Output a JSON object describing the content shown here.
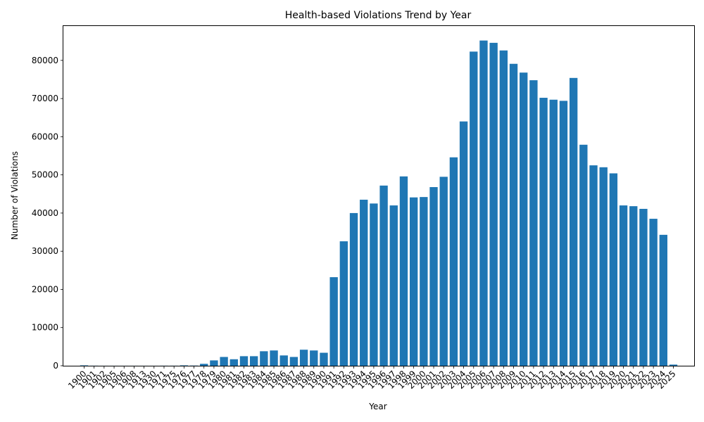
{
  "chart_data": {
    "type": "bar",
    "title": "Health-based Violations Trend by Year",
    "xlabel": "Year",
    "ylabel": "Number of Violations",
    "ylim": [
      0,
      89000
    ],
    "yticks": [
      0,
      10000,
      20000,
      30000,
      40000,
      50000,
      60000,
      70000,
      80000
    ],
    "grid": false,
    "bar_color": "#1f77b4",
    "categories": [
      "1900",
      "1901",
      "1902",
      "1905",
      "1906",
      "1908",
      "1913",
      "1930",
      "1971",
      "1975",
      "1976",
      "1977",
      "1978",
      "1979",
      "1980",
      "1981",
      "1982",
      "1983",
      "1984",
      "1985",
      "1986",
      "1987",
      "1988",
      "1989",
      "1990",
      "1991",
      "1992",
      "1993",
      "1994",
      "1995",
      "1996",
      "1997",
      "1998",
      "1999",
      "2000",
      "2001",
      "2002",
      "2003",
      "2004",
      "2005",
      "2006",
      "2007",
      "2008",
      "2009",
      "2010",
      "2011",
      "2012",
      "2013",
      "2014",
      "2015",
      "2016",
      "2017",
      "2018",
      "2019",
      "2020",
      "2021",
      "2022",
      "2023",
      "2024",
      "2025"
    ],
    "values": [
      100,
      20,
      10,
      10,
      10,
      10,
      10,
      10,
      20,
      20,
      100,
      50,
      500,
      1400,
      2300,
      1700,
      2500,
      2500,
      3800,
      4000,
      2700,
      2300,
      4200,
      4000,
      3400,
      23200,
      32600,
      40000,
      43500,
      42500,
      47200,
      42000,
      49600,
      44100,
      44200,
      46800,
      49500,
      54600,
      64000,
      82300,
      85200,
      84600,
      82600,
      79100,
      76800,
      74800,
      70200,
      69700,
      69400,
      75400,
      57900,
      52500,
      52000,
      50400,
      42000,
      41800,
      41100,
      38500,
      34300,
      300
    ]
  }
}
